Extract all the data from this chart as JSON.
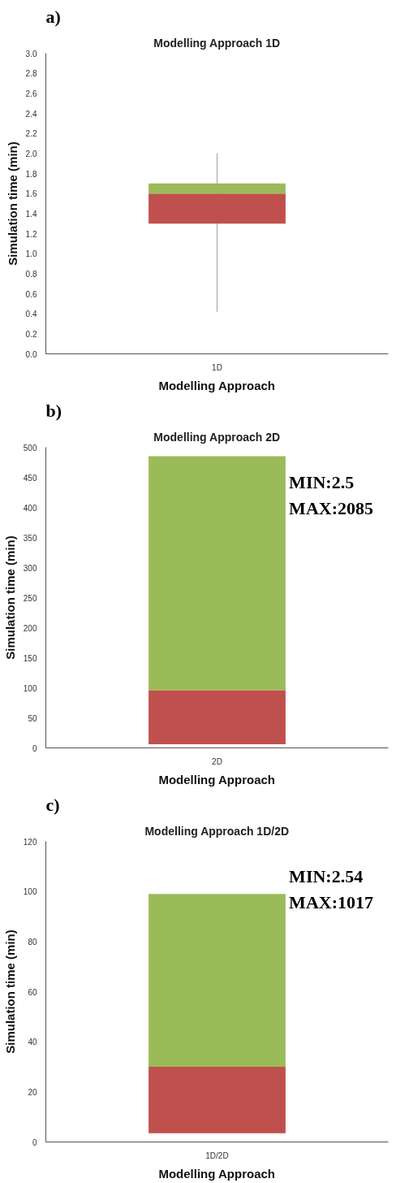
{
  "chart_data": [
    {
      "type": "box",
      "title": "Modelling Approach 1D",
      "xlabel": "Modelling Approach",
      "ylabel": "Simulation time (min)",
      "annotations": [
        "a)"
      ],
      "categories": [
        "1D"
      ],
      "boxes": [
        {
          "low": 0.42,
          "q1": 1.3,
          "median": 1.6,
          "q3": 1.7,
          "high": 2.0
        }
      ],
      "colors": [
        [
          "#c0504d",
          "#9bbb59"
        ]
      ],
      "ylim": [
        0,
        3
      ],
      "yticks": [
        {
          "value": 0,
          "label": "0.0"
        },
        0.2,
        0.4,
        0.6,
        0.8,
        {
          "value": 1,
          "label": "1.0"
        },
        1.2,
        1.4,
        1.6,
        1.8,
        {
          "value": 2,
          "label": "2.0"
        },
        2.2,
        2.4,
        2.6,
        2.8,
        {
          "value": 3,
          "label": "3.0"
        }
      ],
      "grid": false
    },
    {
      "type": "box",
      "title": "Modelling Approach 2D",
      "xlabel": "Modelling Approach",
      "ylabel": "Simulation time (min)",
      "annotations": [
        "b)",
        "MIN:2.5",
        "MAX:2085"
      ],
      "categories": [
        "2D"
      ],
      "boxes": [
        {
          "q1": 6,
          "median": 96,
          "q3": 485
        }
      ],
      "colors": [
        [
          "#c0504d",
          "#9bbb59"
        ]
      ],
      "ylim": [
        0,
        500
      ],
      "yticks": [
        0,
        50,
        100,
        150,
        200,
        250,
        300,
        350,
        400,
        450,
        500
      ],
      "grid": false
    },
    {
      "type": "box",
      "title": "Modelling Approach 1D/2D",
      "xlabel": "Modelling Approach",
      "ylabel": "Simulation time (min)",
      "annotations": [
        "c)",
        "MIN:2.54",
        "MAX:1017"
      ],
      "categories": [
        "1D/2D"
      ],
      "boxes": [
        {
          "q1": 3.5,
          "median": 30,
          "q3": 99
        }
      ],
      "colors": [
        [
          "#c0504d",
          "#9bbb59"
        ]
      ],
      "ylim": [
        0,
        120
      ],
      "yticks": [
        0,
        20,
        40,
        60,
        80,
        100,
        120
      ],
      "grid": false
    }
  ]
}
